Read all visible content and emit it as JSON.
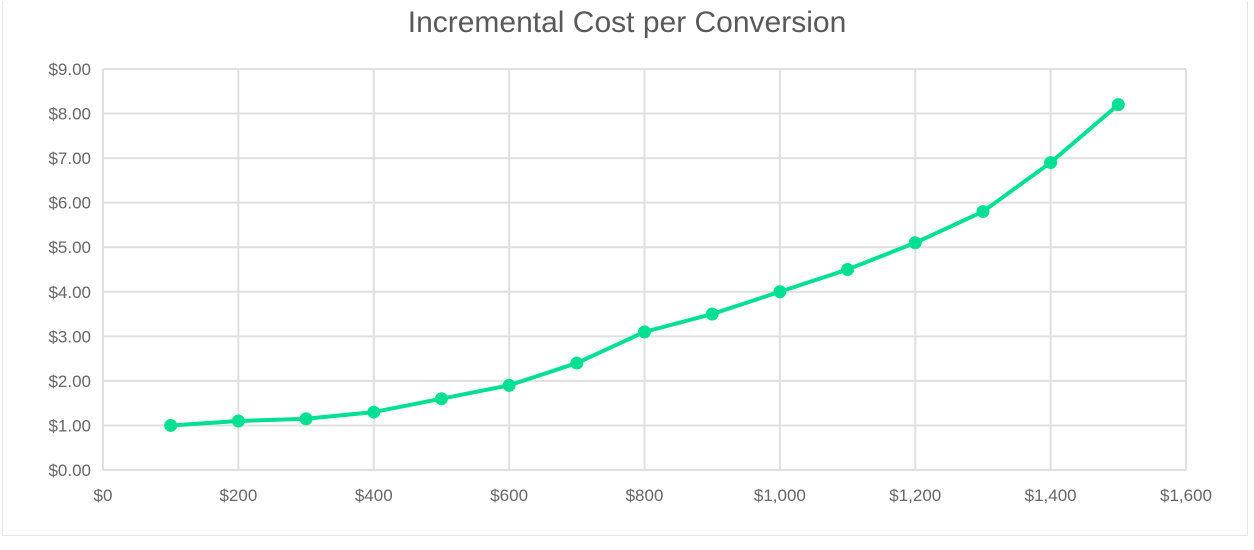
{
  "chart_data": {
    "type": "line",
    "title": "Incremental Cost per Conversion",
    "xlabel": "",
    "ylabel": "",
    "x": [
      100,
      200,
      300,
      400,
      500,
      600,
      700,
      800,
      900,
      1000,
      1100,
      1200,
      1300,
      1400,
      1500
    ],
    "series": [
      {
        "name": "Incremental Cost per Conversion",
        "color": "#00e092",
        "values": [
          1.0,
          1.1,
          1.15,
          1.3,
          1.6,
          1.9,
          2.4,
          3.1,
          3.5,
          4.0,
          4.5,
          5.1,
          5.8,
          6.9,
          8.2
        ]
      }
    ],
    "xlim": [
      0,
      1600
    ],
    "ylim": [
      0,
      9
    ],
    "x_ticks": [
      "$0",
      "$200",
      "$400",
      "$600",
      "$800",
      "$1,000",
      "$1,200",
      "$1,400",
      "$1,600"
    ],
    "y_ticks": [
      "$0.00",
      "$1.00",
      "$2.00",
      "$3.00",
      "$4.00",
      "$5.00",
      "$6.00",
      "$7.00",
      "$8.00",
      "$9.00"
    ],
    "grid": true,
    "legend": "none"
  }
}
